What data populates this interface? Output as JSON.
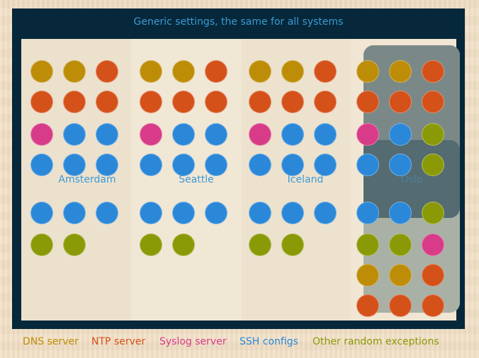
{
  "header": {
    "title": "Generic settings, the same for all systems"
  },
  "colors": {
    "dns": "#bd8d07",
    "ntp": "#d5511a",
    "syslog": "#d83b87",
    "ssh": "#2b88d8",
    "other": "#8a9a07"
  },
  "sites": [
    {
      "name": "Amsterdam",
      "rows": [
        [
          "dns",
          "dns",
          "ntp"
        ],
        [
          "ntp",
          "ntp",
          "ntp"
        ],
        [
          "syslog",
          "ssh",
          "ssh"
        ],
        [
          "ssh",
          "ssh",
          "ssh"
        ],
        [
          "ssh",
          "ssh",
          "ssh"
        ],
        [
          "other",
          "other"
        ]
      ]
    },
    {
      "name": "Seattle",
      "rows": [
        [
          "dns",
          "dns",
          "ntp"
        ],
        [
          "ntp",
          "ntp",
          "ntp"
        ],
        [
          "syslog",
          "ssh",
          "ssh"
        ],
        [
          "ssh",
          "ssh",
          "ssh"
        ],
        [
          "ssh",
          "ssh",
          "ssh"
        ],
        [
          "other",
          "other"
        ]
      ]
    },
    {
      "name": "Iceland",
      "rows": [
        [
          "dns",
          "dns",
          "ntp"
        ],
        [
          "ntp",
          "ntp",
          "ntp"
        ],
        [
          "syslog",
          "ssh",
          "ssh"
        ],
        [
          "ssh",
          "ssh",
          "ssh"
        ],
        [
          "ssh",
          "ssh",
          "ssh"
        ],
        [
          "other",
          "other"
        ]
      ]
    },
    {
      "name": "Oslo",
      "rows": [
        [
          "dns",
          "dns",
          "ntp"
        ],
        [
          "ntp",
          "ntp",
          "ntp"
        ],
        [
          "syslog",
          "ssh",
          "other"
        ],
        [
          "ssh",
          "ssh",
          "other"
        ],
        [
          "ssh",
          "ssh",
          "other"
        ],
        [
          "other",
          "other",
          "syslog"
        ],
        [
          "dns",
          "dns",
          "ntp"
        ],
        [
          "ntp",
          "ntp",
          "ntp"
        ]
      ]
    }
  ],
  "legend": [
    {
      "key": "dns",
      "label": "DNS server"
    },
    {
      "key": "ntp",
      "label": "NTP server"
    },
    {
      "key": "syslog",
      "label": "Syslog server"
    },
    {
      "key": "ssh",
      "label": "SSH configs"
    },
    {
      "key": "other",
      "label": "Other random exceptions"
    }
  ]
}
